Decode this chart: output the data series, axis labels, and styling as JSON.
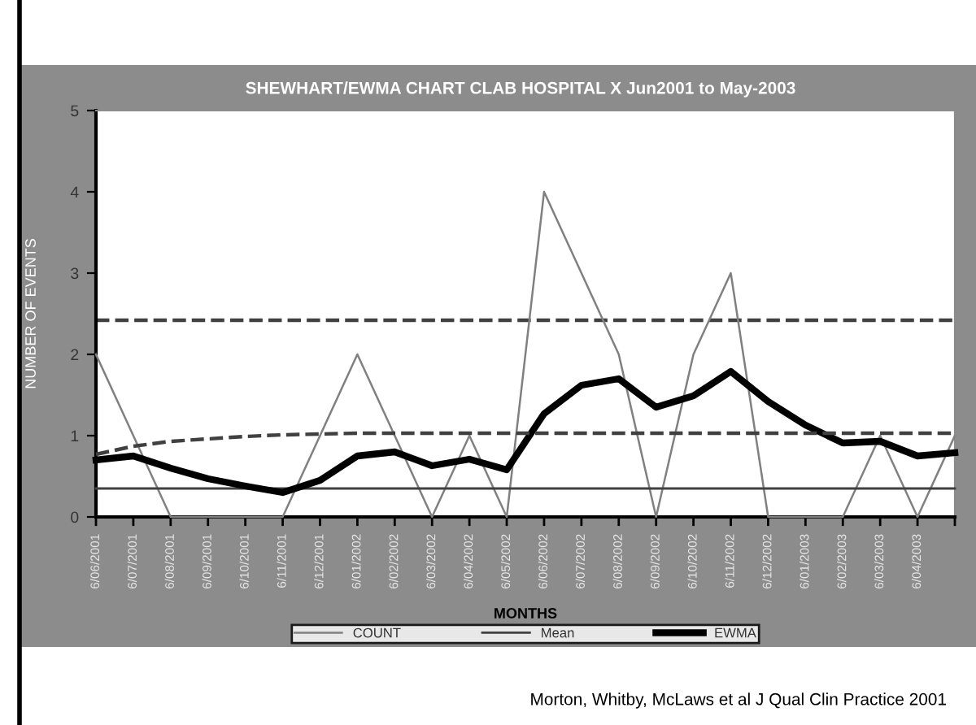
{
  "chart_data": {
    "type": "line",
    "title": "SHEWHART/EWMA CHART CLAB HOSPITAL X Jun2001 to May-2003",
    "xlabel": "MONTHS",
    "ylabel": "NUMBER OF EVENTS",
    "categories": [
      "6/06/2001",
      "6/07/2001",
      "6/08/2001",
      "6/09/2001",
      "6/10/2001",
      "6/11/2001",
      "6/12/2001",
      "6/01/2002",
      "6/02/2002",
      "6/03/2002",
      "6/04/2002",
      "6/05/2002",
      "6/06/2002",
      "6/07/2002",
      "6/08/2002",
      "6/09/2002",
      "6/10/2002",
      "6/11/2002",
      "6/12/2002",
      "6/01/2003",
      "6/02/2003",
      "6/03/2003",
      "6/04/2003",
      null
    ],
    "series": [
      {
        "name": "COUNT",
        "color": "#808080",
        "values": [
          2,
          1,
          0,
          0,
          0,
          0,
          1,
          2,
          1,
          0,
          1,
          0,
          4,
          3,
          2,
          0,
          2,
          3,
          0,
          0,
          0,
          1,
          0,
          1
        ]
      },
      {
        "name": "Mean",
        "color": "#404040",
        "values": [
          0.35,
          0.35,
          0.35,
          0.35,
          0.35,
          0.35,
          0.35,
          0.35,
          0.35,
          0.35,
          0.35,
          0.35,
          0.35,
          0.35,
          0.35,
          0.35,
          0.35,
          0.35,
          0.35,
          0.35,
          0.35,
          0.35,
          0.35,
          0.35
        ]
      },
      {
        "name": "EWMA",
        "color": "#000000",
        "values": [
          0.7,
          0.75,
          0.6,
          0.47,
          0.38,
          0.3,
          0.45,
          0.75,
          0.8,
          0.63,
          0.71,
          0.58,
          1.27,
          1.62,
          1.7,
          1.35,
          1.49,
          1.79,
          1.42,
          1.13,
          0.91,
          0.93,
          0.75,
          0.79
        ]
      },
      {
        "color": "#404040",
        "line_style": "dashed",
        "values": [
          0.77,
          0.87,
          0.93,
          0.96,
          0.99,
          1.01,
          1.02,
          1.03,
          1.03,
          1.03,
          1.03,
          1.03,
          1.03,
          1.03,
          1.03,
          1.03,
          1.03,
          1.03,
          1.03,
          1.03,
          1.03,
          1.03,
          1.03,
          1.03
        ]
      }
    ],
    "ref_lines": [
      {
        "axis": "y",
        "value": 2.42,
        "color": "#404040",
        "line_style": "dashed"
      }
    ],
    "ylim": [
      0,
      5
    ],
    "yticks": [
      0,
      1,
      2,
      3,
      4,
      5
    ],
    "grid": false,
    "legend": "bottom",
    "marker": "none",
    "line_style": "solid",
    "annotations": [
      "Morton, Whitby, McLaws et al J Qual Clin Practice 2001"
    ]
  }
}
